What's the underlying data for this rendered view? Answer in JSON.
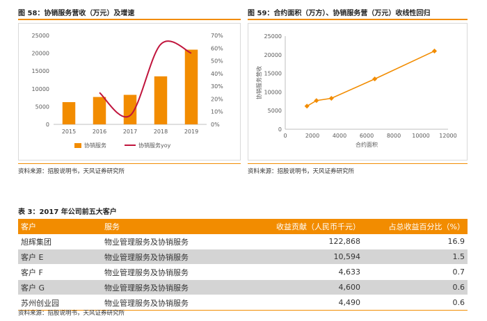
{
  "fig58": {
    "title": "图 58：协销服务营收（万元）及增速",
    "source": "资料来源：招股说明书，天风证券研究所"
  },
  "fig59": {
    "title": "图 59：合约面积（万方）、协销服务营（万元）收线性回归",
    "source": "资料来源：招股说明书，天风证券研究所"
  },
  "chart_data": [
    {
      "type": "bar",
      "categories": [
        "2015",
        "2016",
        "2017",
        "2018",
        "2019"
      ],
      "series": [
        {
          "name": "协销服务",
          "type": "bar",
          "axis": "left",
          "values": [
            6250,
            7700,
            8300,
            13500,
            21000
          ],
          "color": "#f28c00"
        },
        {
          "name": "协销服务yoy",
          "type": "line",
          "axis": "right",
          "values": [
            null,
            0.25,
            0.07,
            0.63,
            0.56
          ],
          "color": "#c0143c"
        }
      ],
      "ylim": [
        0,
        25000
      ],
      "yticks": [
        "0",
        "5000",
        "10000",
        "15000",
        "20000",
        "25000"
      ],
      "y2lim": [
        0,
        0.7
      ],
      "y2ticks": [
        "0%",
        "10%",
        "20%",
        "30%",
        "40%",
        "50%",
        "60%",
        "70%"
      ],
      "legend_position": "bottom"
    },
    {
      "type": "scatter",
      "series": [
        {
          "name": "",
          "x": [
            1600,
            2300,
            3400,
            6600,
            11000
          ],
          "y": [
            6200,
            7700,
            8300,
            13500,
            21000
          ],
          "color": "#f28c00"
        }
      ],
      "xlabel": "合约面积",
      "ylabel": "协销服务营收",
      "xlim": [
        0,
        12000
      ],
      "ylim": [
        0,
        25000
      ],
      "xticks": [
        "0",
        "2000",
        "4000",
        "6000",
        "8000",
        "10000",
        "12000"
      ],
      "yticks": [
        "0",
        "5000",
        "10000",
        "15000",
        "20000",
        "25000"
      ]
    }
  ],
  "table": {
    "title": "表 3：2017 年公司前五大客户",
    "headers": [
      "客户",
      "服务",
      "收益贡献（人民币千元）",
      "占总收益百分比（%）"
    ],
    "rows": [
      [
        "旭辉集团",
        "物业管理服务及协销服务",
        "122,868",
        "16.9"
      ],
      [
        "客户 E",
        "物业管理服务及协销服务",
        "10,594",
        "1.5"
      ],
      [
        "客户 F",
        "物业管理服务及协销服务",
        "4,633",
        "0.7"
      ],
      [
        "客户 G",
        "物业管理服务及协销服务",
        "4,600",
        "0.6"
      ],
      [
        "苏州创业园",
        "物业管理服务及协销服务",
        "4,490",
        "0.6"
      ]
    ],
    "source": "资料来源：招股说明书，天风证券研究所"
  }
}
